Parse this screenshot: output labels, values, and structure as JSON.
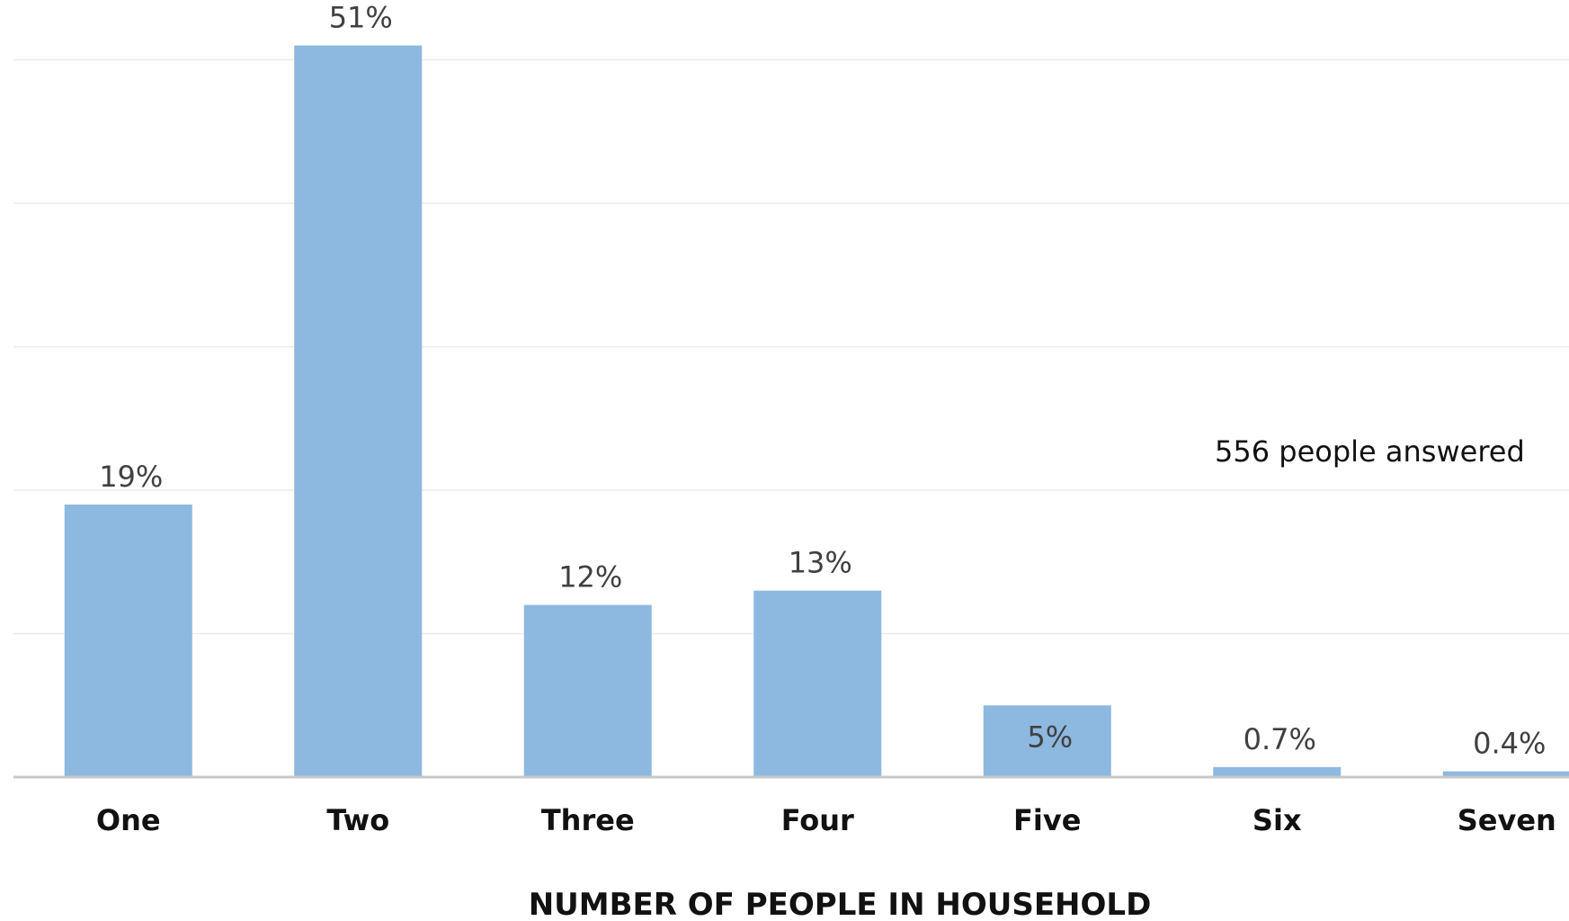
{
  "chart_data": {
    "type": "bar",
    "categories": [
      "One",
      "Two",
      "Three",
      "Four",
      "Five",
      "Six",
      "Seven"
    ],
    "values": [
      19,
      51,
      12,
      13,
      5,
      0.7,
      0.4
    ],
    "data_labels": [
      "19%",
      "51%",
      "12%",
      "13%",
      "5%",
      "0.7%",
      "0.4%"
    ],
    "title": "",
    "xlabel": "NUMBER OF PEOPLE IN HOUSEHOLD",
    "ylabel": "",
    "ylim": [
      0,
      50
    ],
    "grid": true,
    "annotation": "556 people answered",
    "bar_color": "#8db8e0"
  }
}
